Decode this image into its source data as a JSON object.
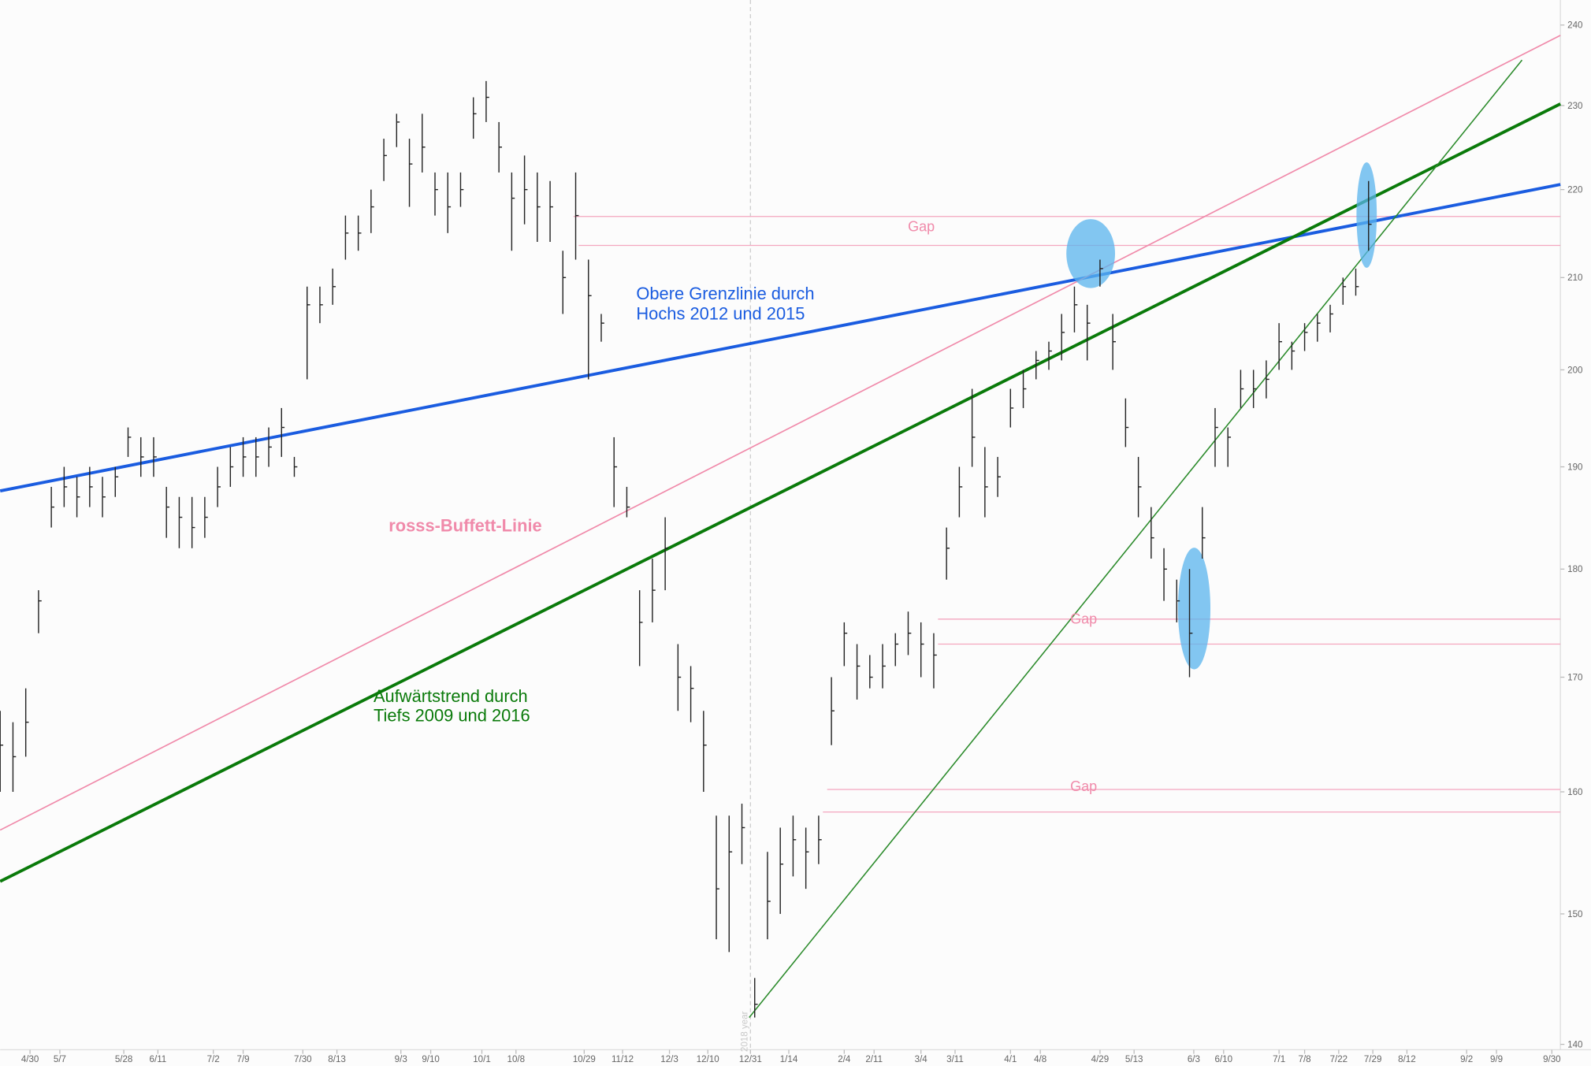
{
  "chart_data": {
    "type": "ohlc",
    "log_scale": true,
    "ylim": [
      139.6,
      243.2
    ],
    "yticks": [
      140,
      150,
      160,
      170,
      180,
      190,
      200,
      210,
      220,
      230,
      240
    ],
    "xlim": [
      0,
      366
    ],
    "xticks": [
      {
        "value": 7,
        "label": "4/30"
      },
      {
        "value": 14,
        "label": "5/7"
      },
      {
        "value": 29,
        "label": "5/28"
      },
      {
        "value": 37,
        "label": "6/11"
      },
      {
        "value": 50,
        "label": "7/2"
      },
      {
        "value": 57,
        "label": "7/9"
      },
      {
        "value": 71,
        "label": "7/30"
      },
      {
        "value": 79,
        "label": "8/13"
      },
      {
        "value": 94,
        "label": "9/3"
      },
      {
        "value": 101,
        "label": "9/10"
      },
      {
        "value": 113,
        "label": "10/1"
      },
      {
        "value": 121,
        "label": "10/8"
      },
      {
        "value": 137,
        "label": "10/29"
      },
      {
        "value": 146,
        "label": "11/12"
      },
      {
        "value": 157,
        "label": "12/3"
      },
      {
        "value": 166,
        "label": "12/10"
      },
      {
        "value": 176,
        "label": "12/31"
      },
      {
        "value": 185,
        "label": "1/14"
      },
      {
        "value": 198,
        "label": "2/4"
      },
      {
        "value": 205,
        "label": "2/11"
      },
      {
        "value": 216,
        "label": "3/4"
      },
      {
        "value": 224,
        "label": "3/11"
      },
      {
        "value": 237,
        "label": "4/1"
      },
      {
        "value": 244,
        "label": "4/8"
      },
      {
        "value": 258,
        "label": "4/29"
      },
      {
        "value": 266,
        "label": "5/13"
      },
      {
        "value": 280,
        "label": "6/3"
      },
      {
        "value": 287,
        "label": "6/10"
      },
      {
        "value": 300,
        "label": "7/1"
      },
      {
        "value": 306,
        "label": "7/8"
      },
      {
        "value": 314,
        "label": "7/22"
      },
      {
        "value": 322,
        "label": "7/29"
      },
      {
        "value": 330,
        "label": "8/12"
      },
      {
        "value": 344,
        "label": "9/2"
      },
      {
        "value": 351,
        "label": "9/9"
      },
      {
        "value": 364,
        "label": "9/30"
      }
    ],
    "year_marker": {
      "x": 176,
      "label": "2018 year"
    },
    "bar_color": "#222222",
    "x": [
      0,
      3,
      6,
      9,
      12,
      15,
      18,
      21,
      24,
      27,
      30,
      33,
      36,
      39,
      42,
      45,
      48,
      51,
      54,
      57,
      60,
      63,
      66,
      69,
      72,
      75,
      78,
      81,
      84,
      87,
      90,
      93,
      96,
      99,
      102,
      105,
      108,
      111,
      114,
      117,
      120,
      123,
      126,
      129,
      132,
      135,
      138,
      141,
      144,
      147,
      150,
      153,
      156,
      159,
      162,
      165,
      168,
      171,
      174,
      177,
      180,
      183,
      186,
      189,
      192,
      195,
      198,
      201,
      204,
      207,
      210,
      213,
      216,
      219,
      222,
      225,
      228,
      231,
      234,
      237,
      240,
      243,
      246,
      249,
      252,
      255,
      258,
      261,
      264,
      267,
      270,
      273,
      276,
      279,
      282,
      285,
      288,
      291,
      294,
      297,
      300,
      303,
      306,
      309,
      312,
      315,
      318,
      321
    ],
    "high": [
      167,
      166,
      169,
      178,
      188,
      190,
      189,
      190,
      189,
      190,
      194,
      193,
      193,
      188,
      187,
      187,
      187,
      190,
      192,
      193,
      193,
      194,
      196,
      191,
      209,
      209,
      211,
      217,
      217,
      220,
      226,
      229,
      226,
      229,
      222,
      222,
      222,
      231,
      233,
      228,
      222,
      224,
      222,
      221,
      213,
      222,
      212,
      206,
      193,
      188,
      178,
      181,
      185,
      173,
      171,
      167,
      158,
      158,
      159,
      145,
      155,
      157,
      158,
      157,
      158,
      170,
      175,
      173,
      172,
      173,
      174,
      176,
      175,
      174,
      184,
      190,
      198,
      192,
      191,
      198,
      200,
      202,
      203,
      206,
      209,
      207,
      212,
      206,
      197,
      191,
      186,
      182,
      179,
      180,
      186,
      196,
      194,
      200,
      200,
      201,
      205,
      203,
      205,
      206,
      207,
      210,
      211,
      221
    ],
    "low": [
      160,
      160,
      163,
      174,
      184,
      186,
      185,
      186,
      185,
      187,
      191,
      189,
      189,
      183,
      182,
      182,
      183,
      186,
      188,
      189,
      189,
      190,
      191,
      189,
      199,
      205,
      207,
      212,
      213,
      215,
      221,
      225,
      218,
      222,
      217,
      215,
      218,
      226,
      228,
      222,
      213,
      216,
      214,
      214,
      206,
      212,
      199,
      203,
      186,
      185,
      171,
      175,
      178,
      167,
      166,
      160,
      148,
      147,
      154,
      142,
      148,
      150,
      153,
      152,
      154,
      164,
      171,
      168,
      169,
      169,
      171,
      172,
      170,
      169,
      179,
      185,
      190,
      185,
      187,
      194,
      196,
      199,
      200,
      201,
      204,
      201,
      209,
      200,
      192,
      185,
      181,
      177,
      175,
      170,
      181,
      190,
      190,
      196,
      196,
      197,
      200,
      200,
      202,
      203,
      204,
      207,
      208,
      213
    ],
    "close": [
      164,
      163,
      166,
      177,
      186,
      188,
      187,
      188,
      187,
      189,
      193,
      191,
      191,
      186,
      185,
      184,
      185,
      188,
      190,
      191,
      191,
      192,
      194,
      190,
      207,
      207,
      209,
      215,
      215,
      218,
      224,
      228,
      223,
      225,
      220,
      218,
      220,
      229,
      231,
      225,
      219,
      220,
      218,
      218,
      210,
      217,
      208,
      205,
      190,
      186,
      175,
      178,
      182,
      170,
      169,
      164,
      152,
      155,
      157,
      143,
      151,
      154,
      156,
      155,
      156,
      167,
      174,
      171,
      170,
      171,
      173,
      174,
      173,
      172,
      182,
      188,
      193,
      188,
      189,
      196,
      198,
      201,
      202,
      204,
      207,
      205,
      211,
      203,
      194,
      188,
      183,
      180,
      177,
      174,
      183,
      194,
      193,
      198,
      198,
      199,
      203,
      202,
      204,
      205,
      206,
      209,
      209,
      216
    ],
    "trendlines": [
      {
        "color": "#1a5ce0",
        "width": 3,
        "x": [
          0,
          366
        ],
        "values": [
          187.6,
          220.6
        ]
      },
      {
        "color": "#0a7a0a",
        "width": 3,
        "x": [
          0,
          366
        ],
        "values": [
          152.6,
          230.2
        ]
      },
      {
        "color": "#f08aaa",
        "width": 1.3,
        "x": [
          0,
          366
        ],
        "values": [
          156.8,
          238.7
        ]
      },
      {
        "color": "#2a8a2a",
        "width": 1.2,
        "x": [
          175.7,
          357
        ],
        "values": [
          142.0,
          235.6
        ]
      }
    ],
    "gaps": [
      {
        "label": "Gap",
        "x": [
          134.5,
          135.7
        ],
        "values": [
          216.9,
          213.6
        ]
      },
      {
        "label": "Gap",
        "x": [
          220,
          220
        ],
        "values": [
          175.3,
          173.0
        ]
      },
      {
        "label": "Gap",
        "x": [
          194,
          193
        ],
        "values": [
          160.2,
          158.3
        ]
      }
    ],
    "annotations": {
      "upper_line": [
        "Obere Grenzlinie durch",
        "Hochs 2012 und 2015"
      ],
      "buffett_line": "rosss-Buffett-Linie",
      "uptrend": [
        "Aufwärtstrend durch",
        "Tiefs 2009 und 2016"
      ]
    }
  }
}
